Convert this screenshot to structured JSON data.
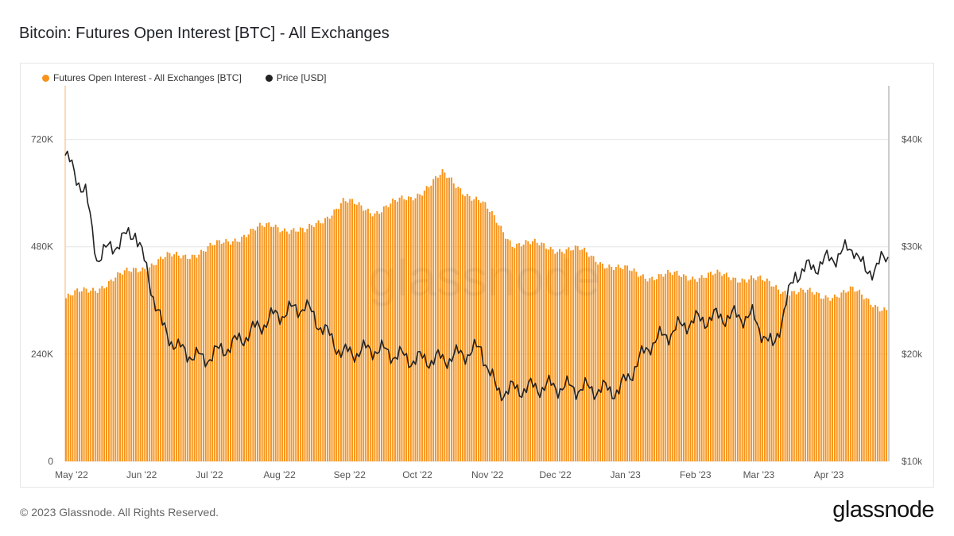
{
  "header": {
    "title": "Bitcoin: Futures Open Interest [BTC] - All Exchanges"
  },
  "footer": {
    "copyright": "© 2023 Glassnode. All Rights Reserved.",
    "brand": "glassnode"
  },
  "watermark": "glassnode",
  "colors": {
    "open_interest": "#f7931a",
    "price": "#222222",
    "grid": "#e9e9e9"
  },
  "chart_data": {
    "type": "bar",
    "title": "Bitcoin: Futures Open Interest [BTC] - All Exchanges",
    "legend": [
      {
        "label": "Futures Open Interest - All Exchanges [BTC]",
        "color": "#f7931a"
      },
      {
        "label": "Price [USD]",
        "color": "#222222"
      }
    ],
    "legend_position": "top-left",
    "grid": true,
    "x_ticks": [
      "May '22",
      "Jun '22",
      "Jul '22",
      "Aug '22",
      "Sep '22",
      "Oct '22",
      "Nov '22",
      "Dec '22",
      "Jan '23",
      "Feb '23",
      "Mar '23",
      "Apr '23"
    ],
    "y_left": {
      "label": "",
      "ticks": [
        "0",
        "240K",
        "480K",
        "720K"
      ],
      "tick_values": [
        0,
        240000,
        480000,
        720000
      ],
      "range": [
        0,
        840000
      ]
    },
    "y_right": {
      "label": "",
      "ticks": [
        "$10k",
        "$20k",
        "$30k",
        "$40k"
      ],
      "tick_values": [
        10000,
        20000,
        30000,
        40000
      ],
      "range": [
        10000,
        45000
      ]
    },
    "series": [
      {
        "name": "Futures Open Interest - All Exchanges [BTC]",
        "axis": "left",
        "type": "bar",
        "x": [
          "2022-05-01",
          "2022-05-15",
          "2022-06-01",
          "2022-06-15",
          "2022-07-01",
          "2022-07-15",
          "2022-08-01",
          "2022-08-15",
          "2022-09-01",
          "2022-09-15",
          "2022-10-01",
          "2022-10-15",
          "2022-11-01",
          "2022-11-15",
          "2022-12-01",
          "2022-12-15",
          "2023-01-01",
          "2023-01-15",
          "2023-02-01",
          "2023-02-15",
          "2023-03-01",
          "2023-03-15",
          "2023-04-01",
          "2023-04-15",
          "2023-04-30"
        ],
        "values": [
          365000,
          390000,
          430000,
          455000,
          470000,
          500000,
          530000,
          510000,
          580000,
          560000,
          590000,
          640000,
          580000,
          490000,
          480000,
          470000,
          430000,
          415000,
          415000,
          415000,
          410000,
          385000,
          370000,
          380000,
          340000
        ]
      },
      {
        "name": "Price [USD]",
        "axis": "right",
        "type": "line",
        "x": [
          "2022-05-01",
          "2022-05-10",
          "2022-05-15",
          "2022-06-01",
          "2022-06-13",
          "2022-06-20",
          "2022-07-01",
          "2022-07-15",
          "2022-08-01",
          "2022-08-15",
          "2022-09-01",
          "2022-09-15",
          "2022-10-01",
          "2022-10-15",
          "2022-11-01",
          "2022-11-08",
          "2022-11-15",
          "2022-12-01",
          "2022-12-15",
          "2023-01-01",
          "2023-01-15",
          "2023-02-01",
          "2023-02-15",
          "2023-03-01",
          "2023-03-10",
          "2023-03-20",
          "2023-04-01",
          "2023-04-15",
          "2023-04-20",
          "2023-04-30"
        ],
        "values": [
          38500,
          35000,
          29000,
          31500,
          22500,
          20500,
          19500,
          21000,
          23500,
          24500,
          20000,
          20500,
          19500,
          19500,
          20500,
          16500,
          16700,
          17000,
          16800,
          16600,
          21000,
          23000,
          23500,
          23500,
          20500,
          27500,
          28500,
          30000,
          27500,
          29000
        ]
      }
    ]
  }
}
